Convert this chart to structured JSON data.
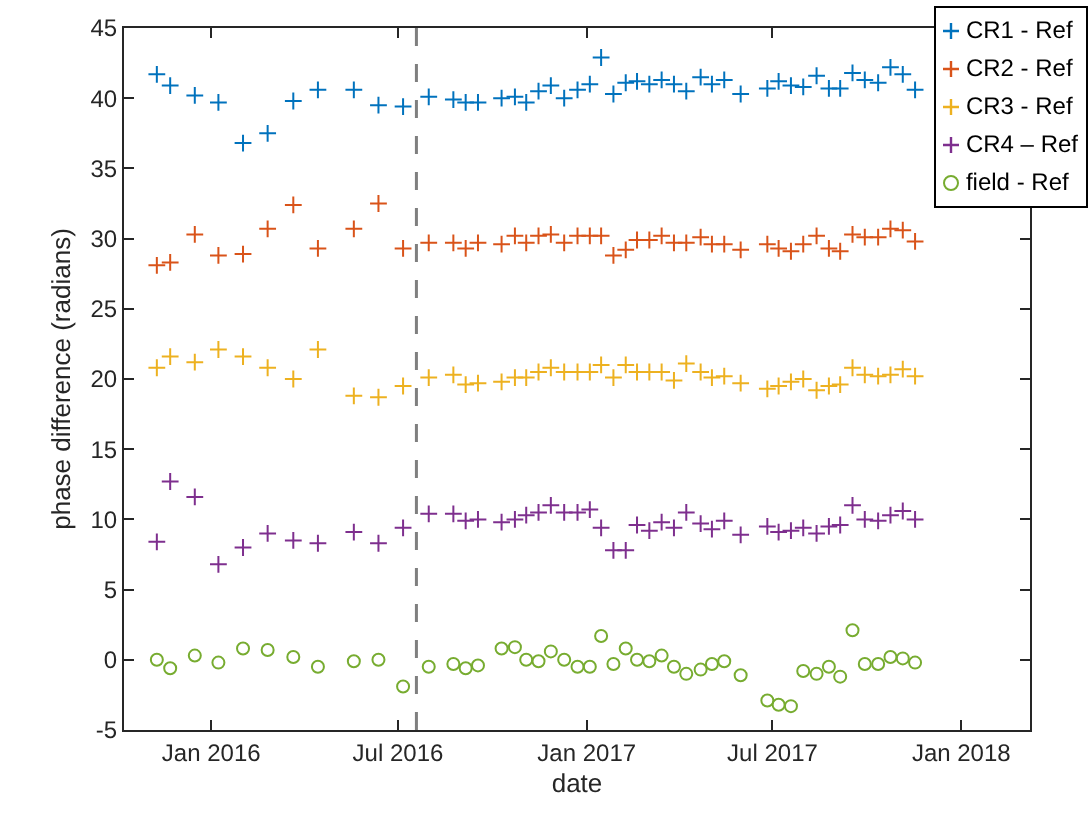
{
  "chart_data": {
    "type": "scatter",
    "xlabel": "date",
    "ylabel": "phase difference (radians)",
    "x": [
      "2015-11-09",
      "2015-11-22",
      "2015-12-16",
      "2016-01-08",
      "2016-02-01",
      "2016-02-25",
      "2016-03-21",
      "2016-04-14",
      "2016-05-19",
      "2016-06-12",
      "2016-07-06",
      "2016-07-31",
      "2016-08-24",
      "2016-09-05",
      "2016-09-17",
      "2016-10-10",
      "2016-10-23",
      "2016-11-03",
      "2016-11-15",
      "2016-11-27",
      "2016-12-10",
      "2016-12-23",
      "2017-01-04",
      "2017-01-15",
      "2017-01-27",
      "2017-02-08",
      "2017-02-19",
      "2017-03-03",
      "2017-03-15",
      "2017-03-27",
      "2017-04-08",
      "2017-04-22",
      "2017-05-03",
      "2017-05-15",
      "2017-05-31",
      "2017-06-26",
      "2017-07-07",
      "2017-07-19",
      "2017-07-31",
      "2017-08-13",
      "2017-08-25",
      "2017-09-05",
      "2017-09-17",
      "2017-09-29",
      "2017-10-12",
      "2017-10-24",
      "2017-11-05",
      "2017-11-17"
    ],
    "series": [
      {
        "name": "CR1 - Ref",
        "color": "#0072bd",
        "marker": "cross",
        "values": [
          41.7,
          40.9,
          40.2,
          39.7,
          36.8,
          37.5,
          39.8,
          40.6,
          40.6,
          39.5,
          39.4,
          40.1,
          39.9,
          39.7,
          39.7,
          40.0,
          40.1,
          39.7,
          40.5,
          40.9,
          40.0,
          40.6,
          41.0,
          42.9,
          40.3,
          41.1,
          41.2,
          41.0,
          41.3,
          41.0,
          40.5,
          41.5,
          41.0,
          41.3,
          40.3,
          40.7,
          41.2,
          40.9,
          40.8,
          41.6,
          40.7,
          40.7,
          41.8,
          41.3,
          41.1,
          42.2,
          41.7,
          40.6
        ]
      },
      {
        "name": "CR2 - Ref",
        "color": "#d95319",
        "marker": "cross",
        "values": [
          28.1,
          28.3,
          30.3,
          28.8,
          28.9,
          30.7,
          32.4,
          29.3,
          30.7,
          32.5,
          29.3,
          29.7,
          29.7,
          29.3,
          29.7,
          29.6,
          30.2,
          29.7,
          30.2,
          30.3,
          29.7,
          30.2,
          30.2,
          30.2,
          28.8,
          29.2,
          29.9,
          29.9,
          30.2,
          29.7,
          29.7,
          30.1,
          29.6,
          29.6,
          29.2,
          29.6,
          29.3,
          29.1,
          29.6,
          30.2,
          29.3,
          29.1,
          30.3,
          30.1,
          30.1,
          30.7,
          30.6,
          29.8
        ]
      },
      {
        "name": "CR3 - Ref",
        "color": "#edb120",
        "marker": "cross",
        "values": [
          20.8,
          21.6,
          21.2,
          22.1,
          21.6,
          20.8,
          20.0,
          22.1,
          18.8,
          18.7,
          19.5,
          20.1,
          20.3,
          19.6,
          19.7,
          19.8,
          20.1,
          20.1,
          20.5,
          20.8,
          20.5,
          20.5,
          20.5,
          21.0,
          20.1,
          21.0,
          20.5,
          20.5,
          20.5,
          19.9,
          21.1,
          20.5,
          20.1,
          20.2,
          19.7,
          19.3,
          19.5,
          19.8,
          20.0,
          19.2,
          19.5,
          19.6,
          20.8,
          20.3,
          20.2,
          20.3,
          20.7,
          20.2
        ]
      },
      {
        "name": "CR4 – Ref",
        "color": "#7e2f8e",
        "marker": "cross",
        "values": [
          8.4,
          12.7,
          11.6,
          6.8,
          8.0,
          9.0,
          8.5,
          8.3,
          9.1,
          8.3,
          9.4,
          10.4,
          10.4,
          9.9,
          10.0,
          9.8,
          10.0,
          10.3,
          10.5,
          11.0,
          10.5,
          10.5,
          10.7,
          9.4,
          7.8,
          7.8,
          9.6,
          9.2,
          9.8,
          9.4,
          10.5,
          9.7,
          9.3,
          9.9,
          8.9,
          9.5,
          9.1,
          9.2,
          9.4,
          9.0,
          9.5,
          9.6,
          11.0,
          10.0,
          9.9,
          10.3,
          10.6,
          10.0
        ]
      },
      {
        "name": "field - Ref",
        "color": "#77ac30",
        "marker": "circle",
        "values": [
          0.0,
          -0.6,
          0.3,
          -0.2,
          0.8,
          0.7,
          0.2,
          -0.5,
          -0.1,
          0.0,
          -1.9,
          -0.5,
          -0.3,
          -0.6,
          -0.4,
          0.8,
          0.9,
          0.0,
          -0.1,
          0.6,
          0.0,
          -0.5,
          -0.5,
          1.7,
          -0.3,
          0.8,
          0.0,
          -0.1,
          0.3,
          -0.5,
          -1.0,
          -0.7,
          -0.3,
          -0.1,
          -1.1,
          -2.9,
          -3.2,
          -3.3,
          -0.8,
          -1.0,
          -0.5,
          -1.2,
          2.1,
          -0.3,
          -0.3,
          0.2,
          0.1,
          -0.2
        ]
      }
    ],
    "xlim": [
      "2015-10-08",
      "2018-03-09"
    ],
    "xticks": [
      {
        "value": "2016-01-01",
        "label": "Jan 2016"
      },
      {
        "value": "2016-07-01",
        "label": "Jul 2016"
      },
      {
        "value": "2017-01-01",
        "label": "Jan 2017"
      },
      {
        "value": "2017-07-01",
        "label": "Jul 2017"
      },
      {
        "value": "2018-01-01",
        "label": "Jan 2018"
      }
    ],
    "ylim": [
      -5,
      45
    ],
    "yticks": [
      -5,
      0,
      5,
      10,
      15,
      20,
      25,
      30,
      35,
      40,
      45
    ],
    "ref_lines": [
      {
        "axis": "x",
        "value": "2016-07-19",
        "color": "#7f7f7f",
        "line_style": "dashed"
      }
    ],
    "grid": false,
    "legend": "top right"
  }
}
